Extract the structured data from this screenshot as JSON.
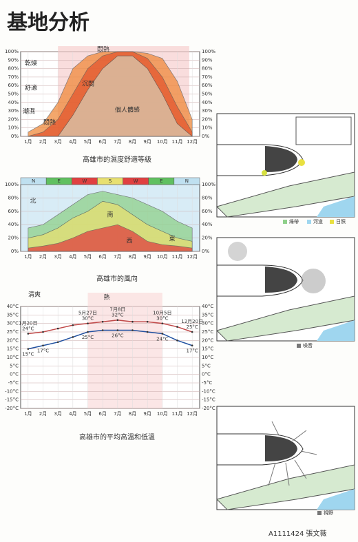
{
  "title": "基地分析",
  "author": "A1111424 張文薇",
  "maps": [
    {
      "legend": [
        "綠帶",
        "河道",
        "日照"
      ]
    },
    {
      "legend": [
        "噪音"
      ]
    },
    {
      "legend": [
        "視野"
      ]
    }
  ],
  "chart_data": [
    {
      "type": "area",
      "caption": "高雄市的濕度舒適等級",
      "categories": [
        "1月",
        "2月",
        "3月",
        "4月",
        "5月",
        "6月",
        "7月",
        "8月",
        "9月",
        "10月",
        "11月",
        "12月"
      ],
      "ylim": [
        0,
        100
      ],
      "yticks": [
        {
          "value": 0,
          "label": "0%"
        },
        {
          "value": 10,
          "label": "10%"
        },
        {
          "value": 20,
          "label": "20%"
        },
        {
          "value": 30,
          "label": "30%"
        },
        {
          "value": 40,
          "label": "40%"
        },
        {
          "value": 50,
          "label": "50%"
        },
        {
          "value": 60,
          "label": "60%"
        },
        {
          "value": 70,
          "label": "70%"
        },
        {
          "value": 80,
          "label": "80%"
        },
        {
          "value": 90,
          "label": "90%"
        },
        {
          "value": 100,
          "label": "100%"
        }
      ],
      "series": [
        {
          "color": "#f08a3c",
          "values": [
            5,
            15,
            40,
            80,
            95,
            100,
            100,
            100,
            98,
            92,
            65,
            20
          ]
        },
        {
          "color": "#e2562e",
          "values": [
            0,
            5,
            20,
            50,
            80,
            95,
            100,
            100,
            92,
            70,
            35,
            5
          ]
        },
        {
          "color": "#d8c9b0",
          "values": [
            0,
            0,
            0,
            25,
            55,
            80,
            95,
            95,
            80,
            50,
            15,
            0
          ]
        }
      ],
      "annotations": [
        "悶熱",
        "乾燥",
        "舒適",
        "潮濕",
        "悶熱",
        "沉悶",
        "個人體感"
      ]
    },
    {
      "type": "area",
      "caption": "高雄市的風向",
      "categories": [
        "1月",
        "2月",
        "3月",
        "4月",
        "5月",
        "6月",
        "7月",
        "8月",
        "9月",
        "10月",
        "11月",
        "12月"
      ],
      "directions": [
        "N",
        "E",
        "W",
        "S",
        "W",
        "E",
        "N"
      ],
      "ylim": [
        0,
        100
      ],
      "yticks": [
        {
          "value": 0,
          "label": "0%"
        },
        {
          "value": 20,
          "label": "20%"
        },
        {
          "value": 40,
          "label": "40%"
        },
        {
          "value": 60,
          "label": "60%"
        },
        {
          "value": 80,
          "label": "80%"
        },
        {
          "value": 100,
          "label": "100%"
        }
      ],
      "series": [
        {
          "color": "#8fd08a",
          "values": [
            35,
            40,
            55,
            70,
            85,
            90,
            85,
            80,
            70,
            60,
            45,
            35
          ]
        },
        {
          "color": "#e8e070",
          "values": [
            20,
            25,
            35,
            50,
            60,
            75,
            70,
            55,
            40,
            30,
            20,
            15
          ]
        },
        {
          "color": "#e04040",
          "values": [
            5,
            8,
            12,
            20,
            30,
            35,
            40,
            30,
            15,
            10,
            8,
            5
          ]
        }
      ],
      "annotations": [
        "北",
        "南",
        "西",
        "東"
      ]
    },
    {
      "type": "line",
      "caption": "高雄市的平均高溫和低溫",
      "categories": [
        "1月",
        "2月",
        "3月",
        "4月",
        "5月",
        "6月",
        "7月",
        "8月",
        "9月",
        "10月",
        "11月",
        "12月"
      ],
      "ylim": [
        -20,
        40
      ],
      "yticks": [
        {
          "value": -20,
          "label": "-20°C"
        },
        {
          "value": -15,
          "label": "-15°C"
        },
        {
          "value": -10,
          "label": "-10°C"
        },
        {
          "value": -5,
          "label": "-5°C"
        },
        {
          "value": 0,
          "label": "0°C"
        },
        {
          "value": 5,
          "label": "5°C"
        },
        {
          "value": 10,
          "label": "10°C"
        },
        {
          "value": 15,
          "label": "15°C"
        },
        {
          "value": 20,
          "label": "20°C"
        },
        {
          "value": 25,
          "label": "25°C"
        },
        {
          "value": 30,
          "label": "30°C"
        },
        {
          "value": 35,
          "label": "35°C"
        },
        {
          "value": 40,
          "label": "40°C"
        }
      ],
      "series": [
        {
          "color": "#c04848",
          "values": [
            24,
            25,
            27,
            29,
            30,
            31,
            32,
            31,
            31,
            30,
            28,
            25
          ],
          "value_labels": [
            "24°C",
            null,
            null,
            null,
            "30°C",
            null,
            "32°C",
            null,
            null,
            "30°C",
            null,
            "25°C"
          ]
        },
        {
          "color": "#2050a0",
          "values": [
            15,
            17,
            19,
            22,
            25,
            26,
            26,
            26,
            25,
            24,
            20,
            17
          ],
          "value_labels": [
            "15°C",
            "17°C",
            null,
            null,
            "25°C",
            null,
            "26°C",
            null,
            null,
            "24°C",
            null,
            "17°C"
          ]
        }
      ],
      "dates": [
        "1月20日",
        "5月27日",
        "7月8日",
        "10月5日",
        "12月20日"
      ],
      "annotations": [
        "清爽",
        "熱"
      ]
    }
  ]
}
